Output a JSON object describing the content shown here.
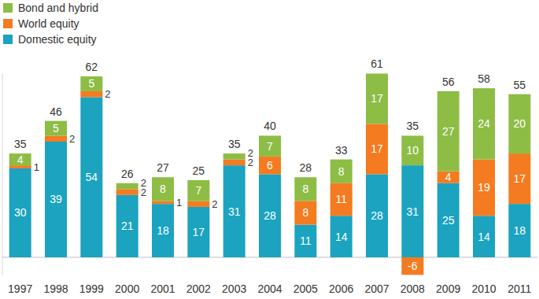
{
  "chart_data": {
    "type": "bar",
    "stacked": true,
    "data_labels": true,
    "grid": false,
    "legend": "top-left",
    "tick_labels": "x",
    "categories": [
      "1997",
      "1998",
      "1999",
      "2000",
      "2001",
      "2002",
      "2003",
      "2004",
      "2005",
      "2006",
      "2007",
      "2008",
      "2009",
      "2010",
      "2011"
    ],
    "series": [
      {
        "name": "Domestic equity",
        "color": "#1ba3bf",
        "values": [
          30,
          39,
          54,
          21,
          18,
          17,
          31,
          28,
          11,
          14,
          28,
          31,
          25,
          14,
          18
        ]
      },
      {
        "name": "World equity",
        "color": "#f47b20",
        "values": [
          1,
          2,
          2,
          2,
          1,
          2,
          2,
          6,
          8,
          11,
          17,
          -6,
          4,
          19,
          17
        ]
      },
      {
        "name": "Bond and hybrid",
        "color": "#8dbd45",
        "values": [
          4,
          5,
          5,
          2,
          8,
          7,
          2,
          7,
          8,
          8,
          17,
          10,
          27,
          24,
          20
        ]
      }
    ],
    "totals": [
      35,
      46,
      62,
      26,
      27,
      25,
      35,
      40,
      28,
      33,
      61,
      35,
      56,
      58,
      55
    ],
    "ylim": [
      -6,
      62
    ],
    "yticks": [
      0
    ]
  }
}
